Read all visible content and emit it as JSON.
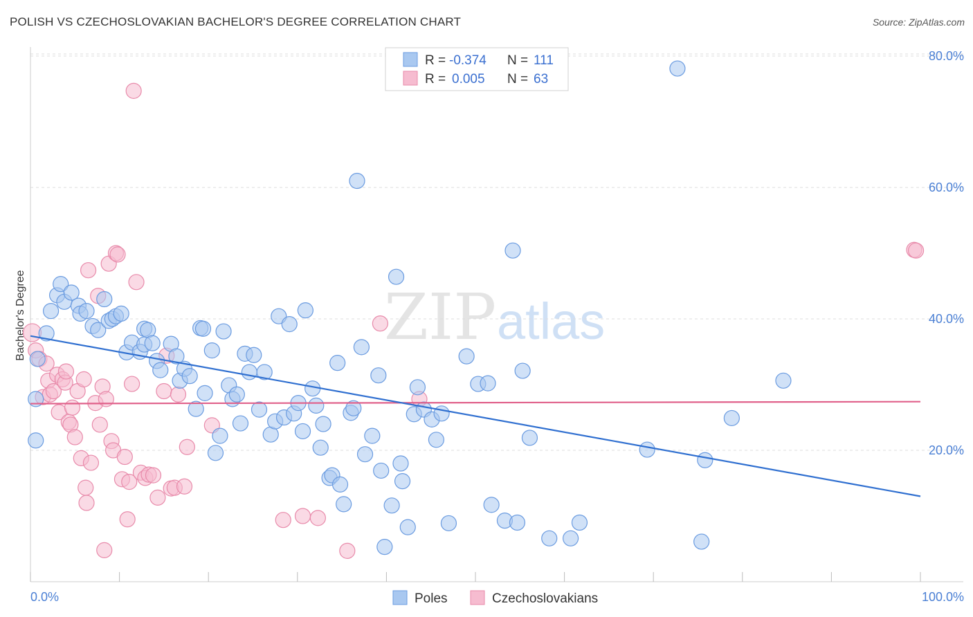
{
  "title": "POLISH VS CZECHOSLOVAKIAN BACHELOR'S DEGREE CORRELATION CHART",
  "source": "Source: ZipAtlas.com",
  "watermark": {
    "zip": "ZIP",
    "atlas": "atlas"
  },
  "legend": {
    "rows": [
      {
        "r_label": "R =",
        "r_value": "-0.374",
        "n_label": "N =",
        "n_value": "111"
      },
      {
        "r_label": "R =",
        "r_value": "0.005",
        "n_label": "N =",
        "n_value": "63"
      }
    ]
  },
  "bottom_legend": [
    {
      "label": "Poles"
    },
    {
      "label": "Czechoslovakians"
    }
  ],
  "colors": {
    "poles_fill": "#a9c8f0",
    "poles_stroke": "#6a9be0",
    "poles_line": "#2f6fd0",
    "czech_fill": "#f6bcd0",
    "czech_stroke": "#e88aaa",
    "czech_line": "#e0608a",
    "tick_text": "#4a7fd4",
    "grid": "#dddddd"
  },
  "chart_data": {
    "type": "scatter",
    "title": "POLISH VS CZECHOSLOVAKIAN BACHELOR'S DEGREE CORRELATION CHART",
    "xlabel": "",
    "ylabel": "Bachelor's Degree",
    "xlim": [
      0,
      100
    ],
    "ylim": [
      0,
      80
    ],
    "x_tick_labels": [
      "0.0%",
      "100.0%"
    ],
    "y_ticks": [
      20,
      40,
      60,
      80
    ],
    "y_tick_labels": [
      "20.0%",
      "40.0%",
      "60.0%",
      "80.0%"
    ],
    "grid": true,
    "legend_position": "top-center",
    "series": [
      {
        "name": "Poles",
        "trend": {
          "x": [
            0,
            100
          ],
          "y": [
            37.4,
            13.0
          ]
        },
        "points": [
          [
            0.6,
            21.5,
            11
          ],
          [
            0.6,
            27.8,
            11
          ],
          [
            0.8,
            33.9,
            11
          ],
          [
            1.8,
            37.8,
            11
          ],
          [
            2.3,
            41.2,
            11
          ],
          [
            3.0,
            43.6,
            11
          ],
          [
            3.4,
            45.3,
            11
          ],
          [
            3.8,
            42.6,
            11
          ],
          [
            4.6,
            44.0,
            11
          ],
          [
            5.4,
            42.0,
            11
          ],
          [
            5.6,
            40.8,
            11
          ],
          [
            6.3,
            41.2,
            11
          ],
          [
            7.0,
            38.9,
            11
          ],
          [
            7.6,
            38.3,
            11
          ],
          [
            8.3,
            43.0,
            11
          ],
          [
            8.8,
            39.7,
            11
          ],
          [
            9.2,
            40.0,
            11
          ],
          [
            9.6,
            40.4,
            11
          ],
          [
            10.2,
            40.8,
            11
          ],
          [
            10.8,
            34.9,
            11
          ],
          [
            11.4,
            36.4,
            11
          ],
          [
            12.3,
            35.0,
            11
          ],
          [
            12.8,
            38.5,
            11
          ],
          [
            12.8,
            36.1,
            11
          ],
          [
            13.2,
            38.3,
            11
          ],
          [
            13.7,
            36.3,
            11
          ],
          [
            14.2,
            33.6,
            11
          ],
          [
            14.6,
            32.2,
            11
          ],
          [
            15.8,
            36.2,
            11
          ],
          [
            16.4,
            34.3,
            11
          ],
          [
            16.8,
            30.6,
            11
          ],
          [
            17.3,
            32.4,
            11
          ],
          [
            17.9,
            31.3,
            11
          ],
          [
            18.6,
            26.3,
            11
          ],
          [
            19.1,
            38.6,
            11
          ],
          [
            19.4,
            38.5,
            11
          ],
          [
            19.6,
            28.7,
            11
          ],
          [
            20.4,
            35.2,
            11
          ],
          [
            20.8,
            19.6,
            11
          ],
          [
            21.3,
            22.2,
            11
          ],
          [
            21.7,
            38.1,
            11
          ],
          [
            22.3,
            29.9,
            11
          ],
          [
            22.7,
            27.8,
            11
          ],
          [
            23.2,
            28.5,
            11
          ],
          [
            23.6,
            24.1,
            11
          ],
          [
            24.1,
            34.7,
            11
          ],
          [
            24.6,
            31.9,
            11
          ],
          [
            25.1,
            34.5,
            11
          ],
          [
            25.7,
            26.2,
            11
          ],
          [
            26.3,
            31.9,
            11
          ],
          [
            27.0,
            22.4,
            11
          ],
          [
            27.5,
            24.4,
            11
          ],
          [
            27.9,
            40.4,
            11
          ],
          [
            28.5,
            25.0,
            11
          ],
          [
            29.1,
            39.2,
            11
          ],
          [
            29.6,
            25.6,
            11
          ],
          [
            30.1,
            27.2,
            11
          ],
          [
            30.6,
            22.9,
            11
          ],
          [
            30.9,
            41.3,
            11
          ],
          [
            31.7,
            29.4,
            11
          ],
          [
            32.1,
            26.8,
            11
          ],
          [
            32.6,
            20.4,
            11
          ],
          [
            32.9,
            24.0,
            11
          ],
          [
            33.6,
            15.8,
            11
          ],
          [
            33.9,
            16.2,
            11
          ],
          [
            34.5,
            33.3,
            11
          ],
          [
            34.8,
            14.8,
            11
          ],
          [
            35.2,
            11.8,
            11
          ],
          [
            36.0,
            25.7,
            11
          ],
          [
            36.3,
            26.4,
            11
          ],
          [
            36.7,
            61.0,
            11
          ],
          [
            37.2,
            35.7,
            11
          ],
          [
            37.6,
            19.4,
            11
          ],
          [
            38.4,
            22.2,
            11
          ],
          [
            39.1,
            31.4,
            11
          ],
          [
            39.4,
            16.9,
            11
          ],
          [
            39.8,
            5.3,
            11
          ],
          [
            40.6,
            11.6,
            11
          ],
          [
            41.1,
            46.4,
            11
          ],
          [
            41.6,
            18.0,
            11
          ],
          [
            41.8,
            15.3,
            11
          ],
          [
            42.4,
            8.3,
            11
          ],
          [
            43.1,
            25.5,
            11
          ],
          [
            43.5,
            29.6,
            11
          ],
          [
            44.2,
            26.2,
            11
          ],
          [
            45.1,
            24.7,
            11
          ],
          [
            45.6,
            21.6,
            11
          ],
          [
            46.2,
            25.6,
            11
          ],
          [
            47.0,
            8.9,
            11
          ],
          [
            49.0,
            34.3,
            11
          ],
          [
            50.3,
            30.1,
            11
          ],
          [
            51.4,
            30.2,
            11
          ],
          [
            51.8,
            11.7,
            11
          ],
          [
            53.3,
            9.3,
            11
          ],
          [
            54.2,
            50.4,
            11
          ],
          [
            54.7,
            9.0,
            11
          ],
          [
            55.3,
            32.1,
            11
          ],
          [
            56.1,
            21.9,
            11
          ],
          [
            58.3,
            6.6,
            11
          ],
          [
            60.7,
            6.6,
            11
          ],
          [
            61.7,
            9.0,
            11
          ],
          [
            69.3,
            20.1,
            11
          ],
          [
            72.7,
            78.1,
            11
          ],
          [
            75.4,
            6.1,
            11
          ],
          [
            75.8,
            18.5,
            11
          ],
          [
            78.8,
            24.9,
            11
          ],
          [
            84.6,
            30.6,
            11
          ]
        ]
      },
      {
        "name": "Czechoslovakians",
        "trend": {
          "x": [
            0,
            100
          ],
          "y": [
            27.1,
            27.4
          ]
        },
        "points": [
          [
            0.2,
            37.9,
            13
          ],
          [
            0.6,
            35.2,
            11
          ],
          [
            1.0,
            33.9,
            11
          ],
          [
            1.4,
            28.1,
            11
          ],
          [
            1.8,
            33.2,
            11
          ],
          [
            2.0,
            30.6,
            11
          ],
          [
            2.2,
            28.5,
            11
          ],
          [
            2.6,
            29.0,
            11
          ],
          [
            3.0,
            31.5,
            11
          ],
          [
            3.2,
            25.8,
            11
          ],
          [
            3.6,
            30.8,
            11
          ],
          [
            3.9,
            30.3,
            11
          ],
          [
            4.0,
            32.0,
            11
          ],
          [
            4.3,
            24.3,
            11
          ],
          [
            4.5,
            23.9,
            11
          ],
          [
            4.7,
            26.5,
            11
          ],
          [
            5.0,
            22.0,
            11
          ],
          [
            5.3,
            29.0,
            11
          ],
          [
            5.7,
            18.8,
            11
          ],
          [
            6.0,
            30.8,
            11
          ],
          [
            6.2,
            14.3,
            11
          ],
          [
            6.3,
            12.0,
            11
          ],
          [
            6.5,
            47.4,
            11
          ],
          [
            6.8,
            18.1,
            11
          ],
          [
            7.3,
            27.2,
            11
          ],
          [
            7.6,
            43.5,
            11
          ],
          [
            7.8,
            23.9,
            11
          ],
          [
            8.1,
            29.7,
            11
          ],
          [
            8.3,
            4.8,
            11
          ],
          [
            8.5,
            27.8,
            11
          ],
          [
            8.8,
            48.4,
            11
          ],
          [
            9.1,
            21.4,
            11
          ],
          [
            9.3,
            20.0,
            11
          ],
          [
            9.6,
            50.0,
            11
          ],
          [
            9.8,
            49.8,
            11
          ],
          [
            10.3,
            15.6,
            11
          ],
          [
            10.6,
            19.0,
            11
          ],
          [
            10.9,
            9.5,
            11
          ],
          [
            11.1,
            15.2,
            11
          ],
          [
            11.4,
            30.1,
            11
          ],
          [
            11.6,
            74.7,
            11
          ],
          [
            11.9,
            45.6,
            11
          ],
          [
            12.4,
            16.6,
            11
          ],
          [
            12.9,
            15.8,
            11
          ],
          [
            13.3,
            16.3,
            11
          ],
          [
            13.8,
            16.2,
            11
          ],
          [
            14.3,
            12.8,
            11
          ],
          [
            15.0,
            29.0,
            11
          ],
          [
            15.3,
            34.4,
            11
          ],
          [
            15.8,
            14.2,
            11
          ],
          [
            16.2,
            14.3,
            11
          ],
          [
            16.6,
            28.5,
            11
          ],
          [
            17.3,
            14.5,
            11
          ],
          [
            17.6,
            20.5,
            11
          ],
          [
            20.4,
            23.8,
            11
          ],
          [
            28.4,
            9.4,
            11
          ],
          [
            30.6,
            10.0,
            11
          ],
          [
            32.3,
            9.7,
            11
          ],
          [
            35.6,
            4.7,
            11
          ],
          [
            39.3,
            39.3,
            11
          ],
          [
            43.7,
            27.8,
            11
          ],
          [
            99.3,
            50.5,
            11
          ],
          [
            99.5,
            50.4,
            11
          ]
        ]
      }
    ]
  }
}
